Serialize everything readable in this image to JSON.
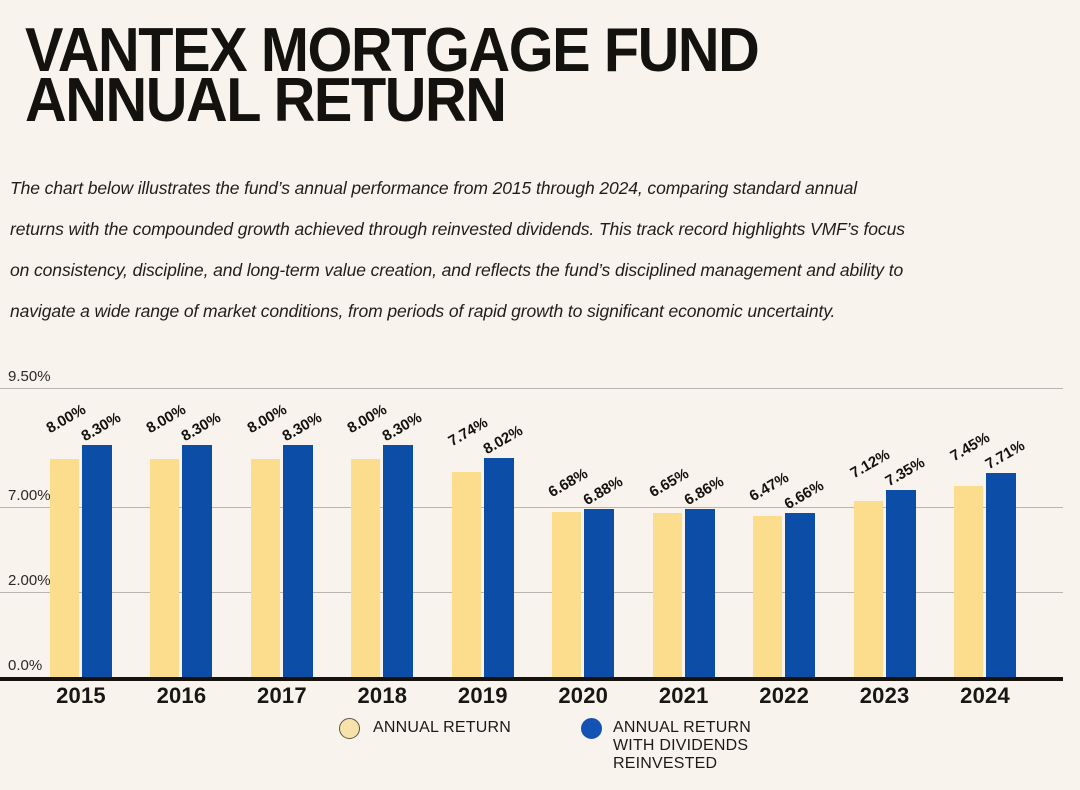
{
  "page": {
    "background": "#f8f4ed"
  },
  "header": {
    "title_line1": "VANTEX MORTGAGE FUND",
    "title_line2": "ANNUAL RETURN"
  },
  "description": {
    "lines": [
      "The chart below illustrates the fund’s annual performance from 2015 through 2024, comparing standard annual",
      "returns with the compounded growth achieved through reinvested dividends. This track record highlights VMF’s focus",
      "on consistency, discipline, and long-term value creation, and reflects the fund’s disciplined management and ability to",
      "navigate a wide range of market conditions, from periods of rapid growth to significant economic uncertainty."
    ]
  },
  "chart_data": {
    "type": "bar",
    "title": "Vantex Mortgage Fund Annual Return",
    "categories": [
      "2015",
      "2016",
      "2017",
      "2018",
      "2019",
      "2020",
      "2021",
      "2022",
      "2023",
      "2024"
    ],
    "series": [
      {
        "name": "ANNUAL RETURN",
        "color": "#fbdd8d",
        "values": [
          8.0,
          8.0,
          8.0,
          8.0,
          7.74,
          6.68,
          6.65,
          6.47,
          7.12,
          7.45
        ],
        "labels": [
          "8.00%",
          "8.00%",
          "8.00%",
          "8.00%",
          "7.74%",
          "6.68%",
          "6.65%",
          "6.47%",
          "7.12%",
          "7.45%"
        ]
      },
      {
        "name": "ANNUAL RETURN WITH DIVIDENDS REINVESTED",
        "color": "#0c4ea7",
        "values": [
          8.3,
          8.3,
          8.3,
          8.3,
          8.02,
          6.88,
          6.86,
          6.66,
          7.35,
          7.71
        ],
        "labels": [
          "8.30%",
          "8.30%",
          "8.30%",
          "8.30%",
          "8.02%",
          "6.88%",
          "6.86%",
          "6.66%",
          "7.35%",
          "7.71%"
        ]
      }
    ],
    "y_axis": {
      "tick_labels": [
        "9.50%",
        "7.00%",
        "2.00%",
        "0.0%"
      ],
      "ylim": [
        0,
        9.5
      ],
      "nonlinear_scale": true
    },
    "grid": true,
    "xlabel": "",
    "ylabel": "",
    "legend": {
      "position": "bottom",
      "items": [
        {
          "lines": [
            "ANNUAL RETURN"
          ],
          "swatch_color": "#f8e2ab",
          "swatch_border": "#5e5743"
        },
        {
          "lines": [
            "ANNUAL RETURN",
            "WITH DIVIDENDS",
            "REINVESTED"
          ],
          "swatch_color": "#1353b5",
          "swatch_border": "#1353b5"
        }
      ]
    },
    "colors": {
      "background": "#f8f4ed",
      "gridline": "#b9b6b1",
      "axis_line": "#16130f",
      "text": "#1c1a17"
    }
  }
}
